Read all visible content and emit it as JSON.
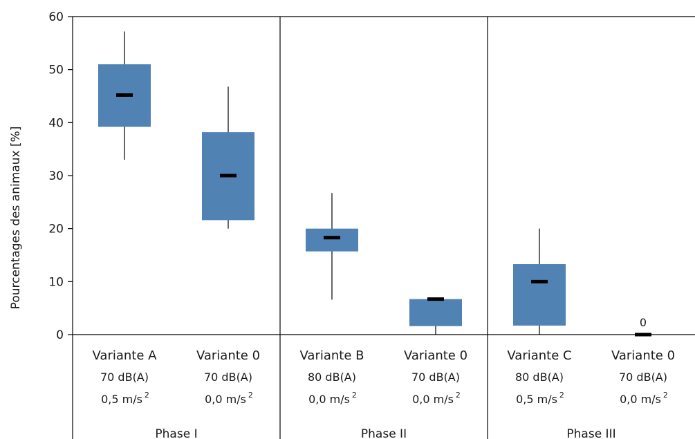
{
  "chart_data": {
    "type": "box",
    "title": "",
    "ylabel": "Pourcentages des animaux [%]",
    "ylim": [
      0,
      60
    ],
    "yticks": [
      0,
      10,
      20,
      30,
      40,
      50,
      60
    ],
    "box_color": "#5182b4",
    "median_color": "#000000",
    "boxes": [
      {
        "category": "Variante A",
        "noise": "70 dB(A)",
        "vibration": "0,5 m/s",
        "phase": "Phase I",
        "min": 33,
        "q1": 39.2,
        "median": 45.2,
        "q3": 51,
        "max": 57.2
      },
      {
        "category": "Variante 0",
        "noise": "70 dB(A)",
        "vibration": "0,0 m/s",
        "phase": "Phase I",
        "min": 20,
        "q1": 21.6,
        "median": 30,
        "q3": 38.2,
        "max": 46.8
      },
      {
        "category": "Variante B",
        "noise": "80 dB(A)",
        "vibration": "0,0 m/s",
        "phase": "Phase II",
        "min": 6.6,
        "q1": 15.7,
        "median": 18.3,
        "q3": 20,
        "max": 26.7
      },
      {
        "category": "Variante 0",
        "noise": "70 dB(A)",
        "vibration": "0,0 m/s",
        "phase": "Phase II",
        "min": 0,
        "q1": 1.6,
        "median": 6.7,
        "q3": 6.7,
        "max": 6.7
      },
      {
        "category": "Variante C",
        "noise": "80 dB(A)",
        "vibration": "0,5 m/s",
        "phase": "Phase III",
        "min": 0,
        "q1": 1.7,
        "median": 10,
        "q3": 13.3,
        "max": 20
      },
      {
        "category": "Variante 0",
        "noise": "70 dB(A)",
        "vibration": "0,0 m/s",
        "phase": "Phase III",
        "min": 0,
        "q1": 0,
        "median": 0,
        "q3": 0,
        "max": 0,
        "annotation": "0"
      }
    ],
    "unit_superscript": "2",
    "phases": [
      "Phase I",
      "Phase II",
      "Phase III"
    ]
  }
}
